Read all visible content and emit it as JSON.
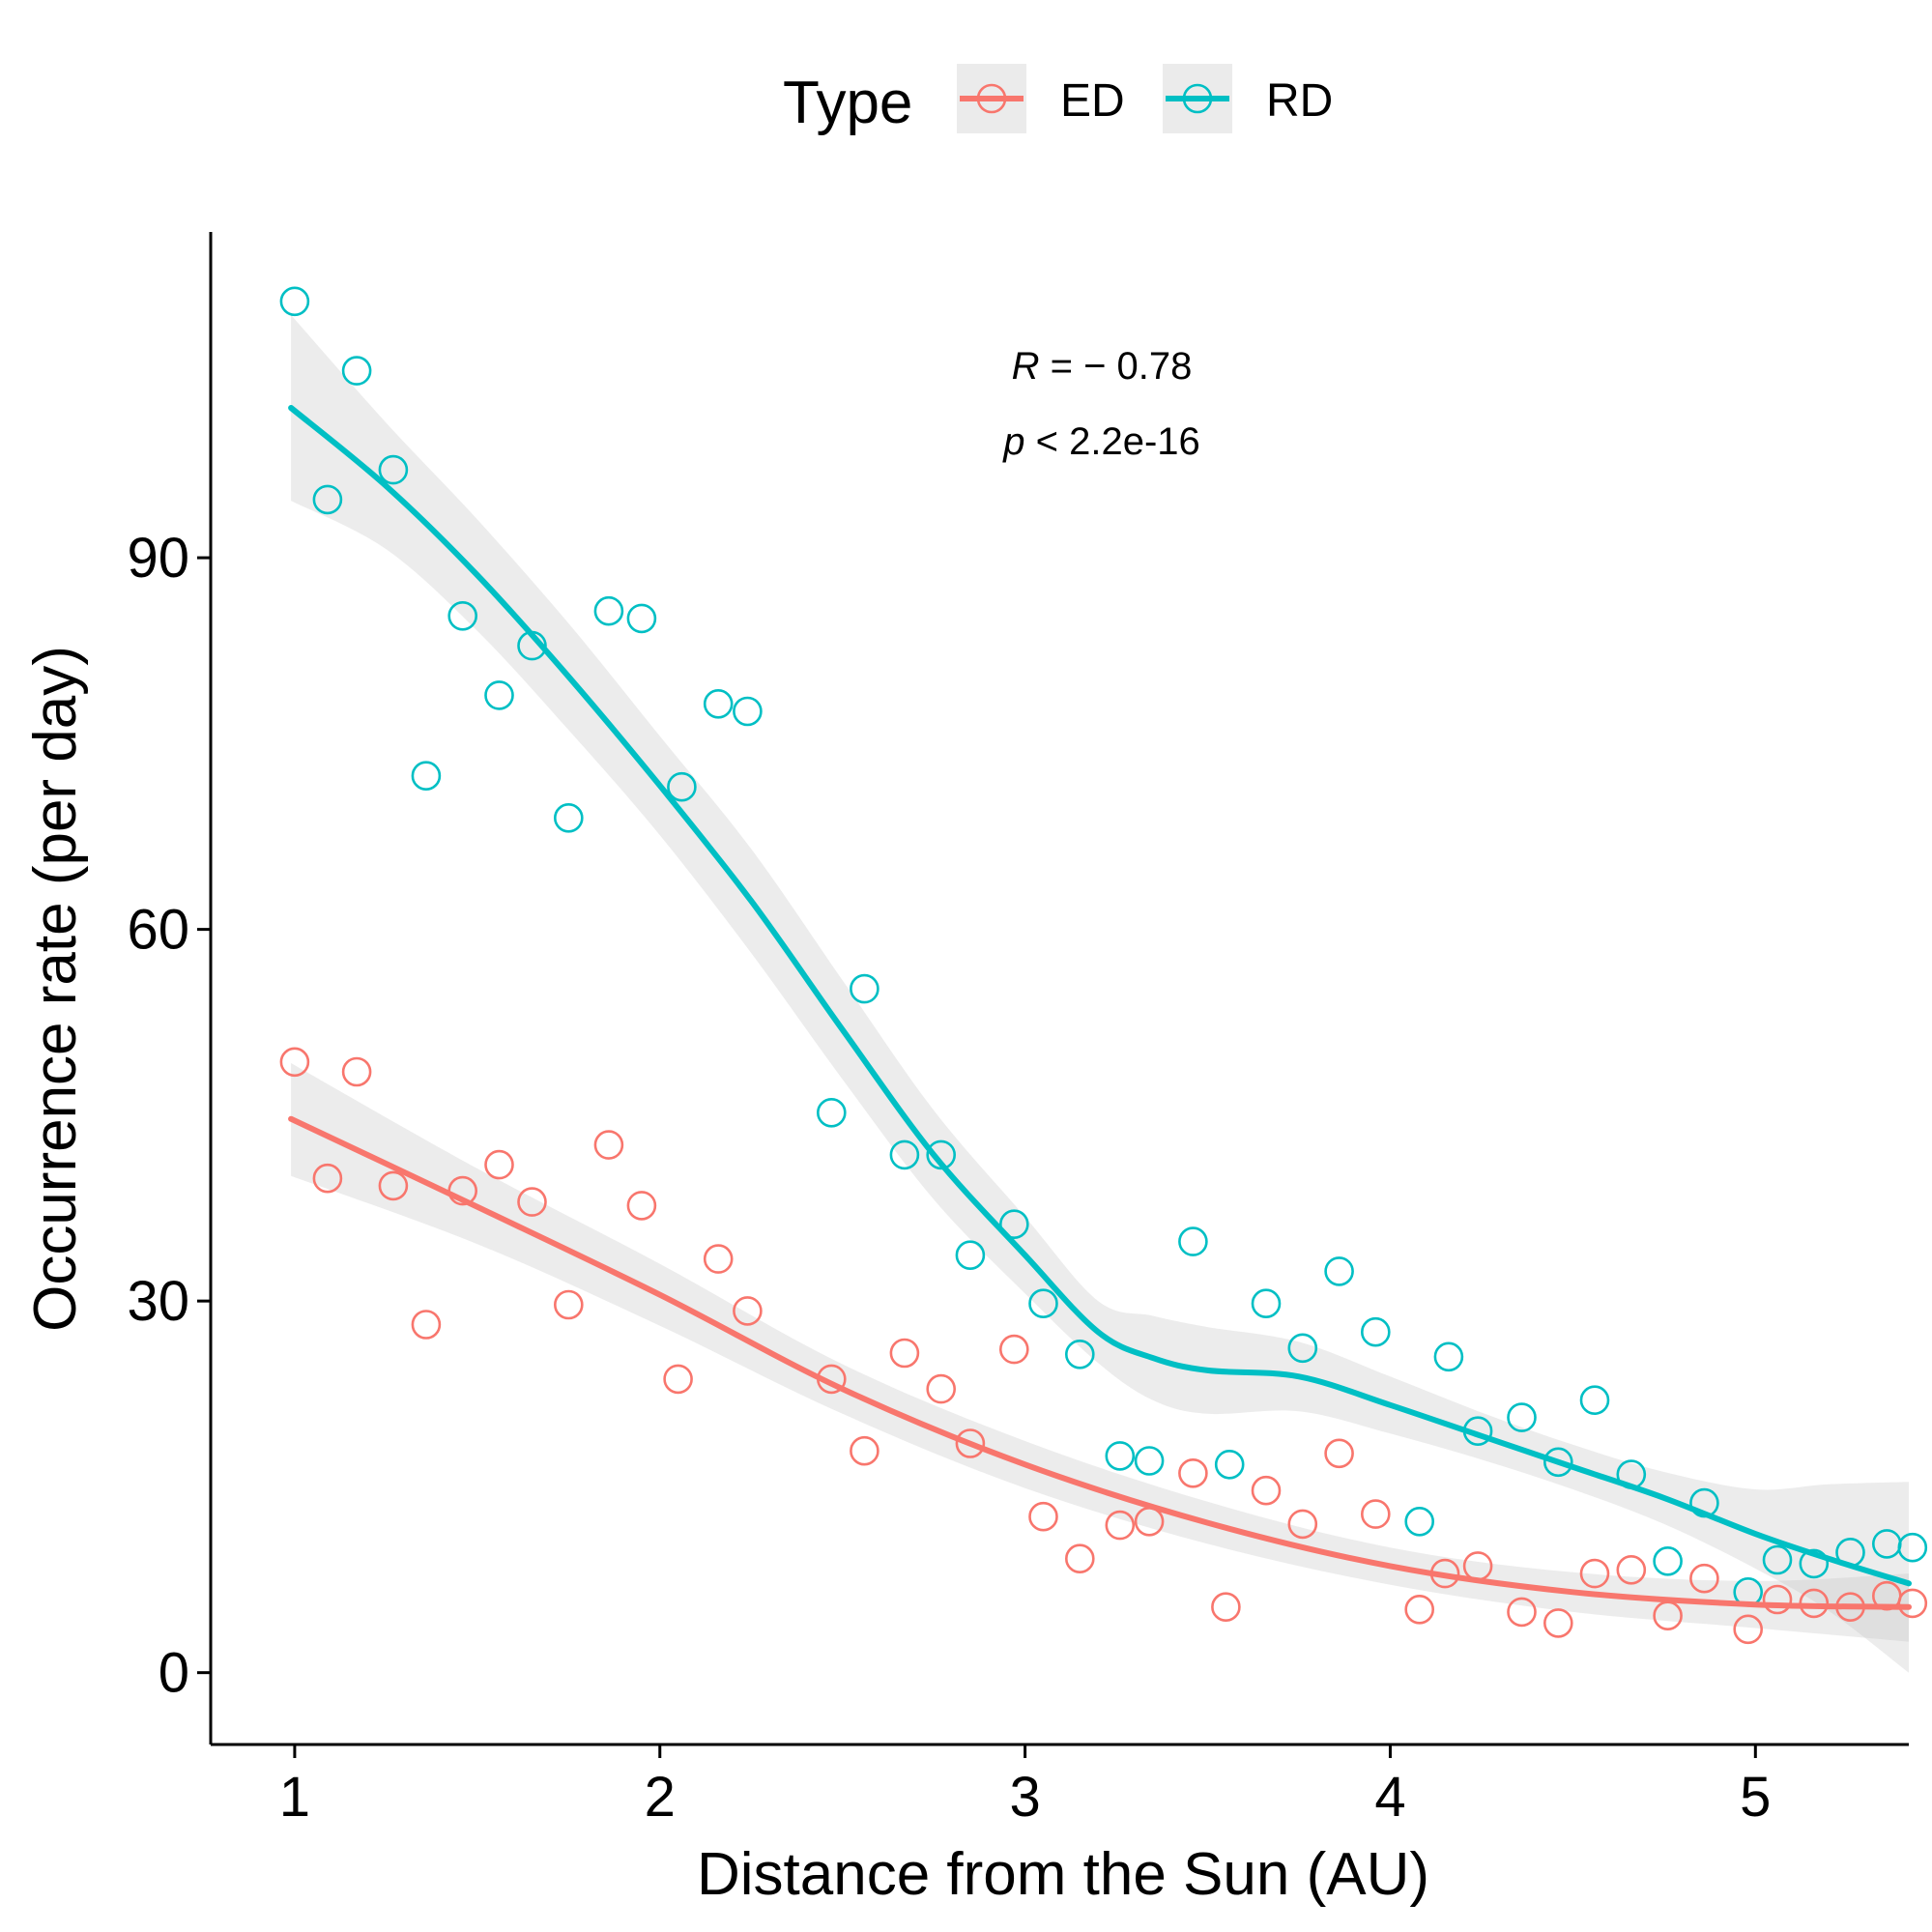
{
  "chart_data": {
    "type": "scatter",
    "xlabel": "Distance from the Sun (AU)",
    "ylabel": "Occurrence rate (per day)",
    "xlim": [
      0.77,
      5.42
    ],
    "ylim": [
      -5.8,
      116.3
    ],
    "x_ticks": [
      1,
      2,
      3,
      4,
      5
    ],
    "y_ticks": [
      0,
      30,
      60,
      90
    ],
    "x_tick_labels": [
      "1",
      "2",
      "3",
      "4",
      "5"
    ],
    "y_tick_labels": [
      "0",
      "30",
      "60",
      "90"
    ],
    "grid": false,
    "legend": {
      "title": "Type",
      "placement": "top",
      "entries": [
        "ED",
        "RD"
      ]
    },
    "annotation": {
      "r_symbol": "R",
      "r_text": " = − 0.78",
      "p_symbol": "p",
      "p_text": " < 2.2e-16"
    },
    "series": [
      {
        "name": "ED",
        "color": "#F8766D",
        "points": [
          [
            1.0,
            49.3
          ],
          [
            1.09,
            39.9
          ],
          [
            1.17,
            48.5
          ],
          [
            1.27,
            39.3
          ],
          [
            1.36,
            28.1
          ],
          [
            1.46,
            38.9
          ],
          [
            1.56,
            41.0
          ],
          [
            1.65,
            38.0
          ],
          [
            1.75,
            29.7
          ],
          [
            1.86,
            42.6
          ],
          [
            1.95,
            37.7
          ],
          [
            2.05,
            23.7
          ],
          [
            2.16,
            33.4
          ],
          [
            2.24,
            29.2
          ],
          [
            2.47,
            23.7
          ],
          [
            2.56,
            17.9
          ],
          [
            2.67,
            25.8
          ],
          [
            2.77,
            22.9
          ],
          [
            2.85,
            18.5
          ],
          [
            2.97,
            26.1
          ],
          [
            3.05,
            12.6
          ],
          [
            3.15,
            9.2
          ],
          [
            3.26,
            11.9
          ],
          [
            3.34,
            12.2
          ],
          [
            3.46,
            16.1
          ],
          [
            3.55,
            5.3
          ],
          [
            3.66,
            14.7
          ],
          [
            3.76,
            12.0
          ],
          [
            3.86,
            17.7
          ],
          [
            3.96,
            12.8
          ],
          [
            4.08,
            5.1
          ],
          [
            4.15,
            8.0
          ],
          [
            4.24,
            8.6
          ],
          [
            4.36,
            4.9
          ],
          [
            4.46,
            4.0
          ],
          [
            4.56,
            8.0
          ],
          [
            4.66,
            8.3
          ],
          [
            4.76,
            4.6
          ],
          [
            4.86,
            7.6
          ],
          [
            4.98,
            3.5
          ],
          [
            5.06,
            5.9
          ],
          [
            5.16,
            5.6
          ],
          [
            5.26,
            5.3
          ],
          [
            5.36,
            6.2
          ],
          [
            5.43,
            5.6
          ]
        ],
        "fit": [
          [
            0.99,
            44.7
          ],
          [
            1.5,
            37.6
          ],
          [
            2.0,
            30.5
          ],
          [
            2.5,
            22.9
          ],
          [
            3.0,
            16.8
          ],
          [
            3.5,
            12.1
          ],
          [
            4.0,
            8.6
          ],
          [
            4.5,
            6.5
          ],
          [
            5.0,
            5.5
          ],
          [
            5.42,
            5.3
          ]
        ],
        "ci_lower": [
          [
            0.99,
            40.1
          ],
          [
            1.5,
            34.6
          ],
          [
            2.0,
            28.0
          ],
          [
            2.5,
            20.9
          ],
          [
            3.0,
            14.9
          ],
          [
            3.5,
            10.4
          ],
          [
            4.0,
            7.1
          ],
          [
            4.5,
            4.9
          ],
          [
            5.0,
            3.6
          ],
          [
            5.42,
            2.5
          ]
        ],
        "ci_upper": [
          [
            0.99,
            49.2
          ],
          [
            1.5,
            40.7
          ],
          [
            2.0,
            33.0
          ],
          [
            2.5,
            24.9
          ],
          [
            3.0,
            18.7
          ],
          [
            3.5,
            13.8
          ],
          [
            4.0,
            10.1
          ],
          [
            4.5,
            8.1
          ],
          [
            5.0,
            7.4
          ],
          [
            5.42,
            8.0
          ]
        ]
      },
      {
        "name": "RD",
        "color": "#00BFC4",
        "points": [
          [
            1.0,
            110.7
          ],
          [
            1.09,
            94.7
          ],
          [
            1.17,
            105.1
          ],
          [
            1.27,
            97.1
          ],
          [
            1.36,
            72.4
          ],
          [
            1.46,
            85.3
          ],
          [
            1.56,
            78.9
          ],
          [
            1.65,
            82.9
          ],
          [
            1.75,
            69.0
          ],
          [
            1.86,
            85.7
          ],
          [
            1.95,
            85.1
          ],
          [
            2.06,
            71.5
          ],
          [
            2.16,
            78.2
          ],
          [
            2.24,
            77.6
          ],
          [
            2.47,
            45.2
          ],
          [
            2.56,
            55.2
          ],
          [
            2.67,
            41.8
          ],
          [
            2.77,
            41.8
          ],
          [
            2.85,
            33.7
          ],
          [
            2.97,
            36.2
          ],
          [
            3.05,
            29.8
          ],
          [
            3.15,
            25.7
          ],
          [
            3.26,
            17.5
          ],
          [
            3.34,
            17.1
          ],
          [
            3.46,
            34.8
          ],
          [
            3.56,
            16.8
          ],
          [
            3.66,
            29.8
          ],
          [
            3.76,
            26.2
          ],
          [
            3.86,
            32.4
          ],
          [
            3.96,
            27.5
          ],
          [
            4.08,
            12.2
          ],
          [
            4.16,
            25.5
          ],
          [
            4.24,
            19.5
          ],
          [
            4.36,
            20.6
          ],
          [
            4.46,
            17.0
          ],
          [
            4.56,
            22.0
          ],
          [
            4.66,
            16.0
          ],
          [
            4.76,
            9.0
          ],
          [
            4.86,
            13.7
          ],
          [
            4.98,
            6.5
          ],
          [
            5.06,
            9.1
          ],
          [
            5.16,
            8.8
          ],
          [
            5.26,
            9.7
          ],
          [
            5.36,
            10.4
          ],
          [
            5.43,
            10.1
          ]
        ],
        "fit": [
          [
            0.99,
            102.1
          ],
          [
            1.25,
            95.8
          ],
          [
            1.5,
            88.6
          ],
          [
            1.75,
            80.4
          ],
          [
            2.0,
            71.6
          ],
          [
            2.25,
            62.3
          ],
          [
            2.5,
            51.9
          ],
          [
            2.75,
            41.8
          ],
          [
            3.0,
            33.7
          ],
          [
            3.2,
            27.5
          ],
          [
            3.35,
            25.4
          ],
          [
            3.5,
            24.4
          ],
          [
            3.75,
            23.9
          ],
          [
            4.0,
            21.6
          ],
          [
            4.25,
            19.1
          ],
          [
            4.5,
            16.6
          ],
          [
            4.75,
            14.1
          ],
          [
            5.0,
            11.2
          ],
          [
            5.2,
            9.2
          ],
          [
            5.42,
            7.2
          ]
        ],
        "ci_lower": [
          [
            0.99,
            94.6
          ],
          [
            1.25,
            90.7
          ],
          [
            1.5,
            84.1
          ],
          [
            1.75,
            76.1
          ],
          [
            2.0,
            67.6
          ],
          [
            2.25,
            58.1
          ],
          [
            2.5,
            47.9
          ],
          [
            2.75,
            38.2
          ],
          [
            3.0,
            30.6
          ],
          [
            3.2,
            25.0
          ],
          [
            3.35,
            22.0
          ],
          [
            3.5,
            20.9
          ],
          [
            3.75,
            21.1
          ],
          [
            4.0,
            19.3
          ],
          [
            4.25,
            17.2
          ],
          [
            4.5,
            14.8
          ],
          [
            4.75,
            12.0
          ],
          [
            5.0,
            8.4
          ],
          [
            5.2,
            5.0
          ],
          [
            5.42,
            0.0
          ]
        ],
        "ci_upper": [
          [
            0.99,
            109.6
          ],
          [
            1.25,
            100.9
          ],
          [
            1.5,
            93.1
          ],
          [
            1.75,
            84.7
          ],
          [
            2.0,
            75.6
          ],
          [
            2.25,
            66.5
          ],
          [
            2.5,
            55.9
          ],
          [
            2.75,
            45.4
          ],
          [
            3.0,
            36.8
          ],
          [
            3.2,
            30.0
          ],
          [
            3.35,
            28.8
          ],
          [
            3.5,
            27.9
          ],
          [
            3.75,
            26.7
          ],
          [
            4.0,
            23.9
          ],
          [
            4.25,
            21.0
          ],
          [
            4.5,
            18.4
          ],
          [
            4.75,
            16.2
          ],
          [
            5.0,
            14.8
          ],
          [
            5.2,
            15.2
          ],
          [
            5.42,
            15.4
          ]
        ]
      }
    ]
  }
}
